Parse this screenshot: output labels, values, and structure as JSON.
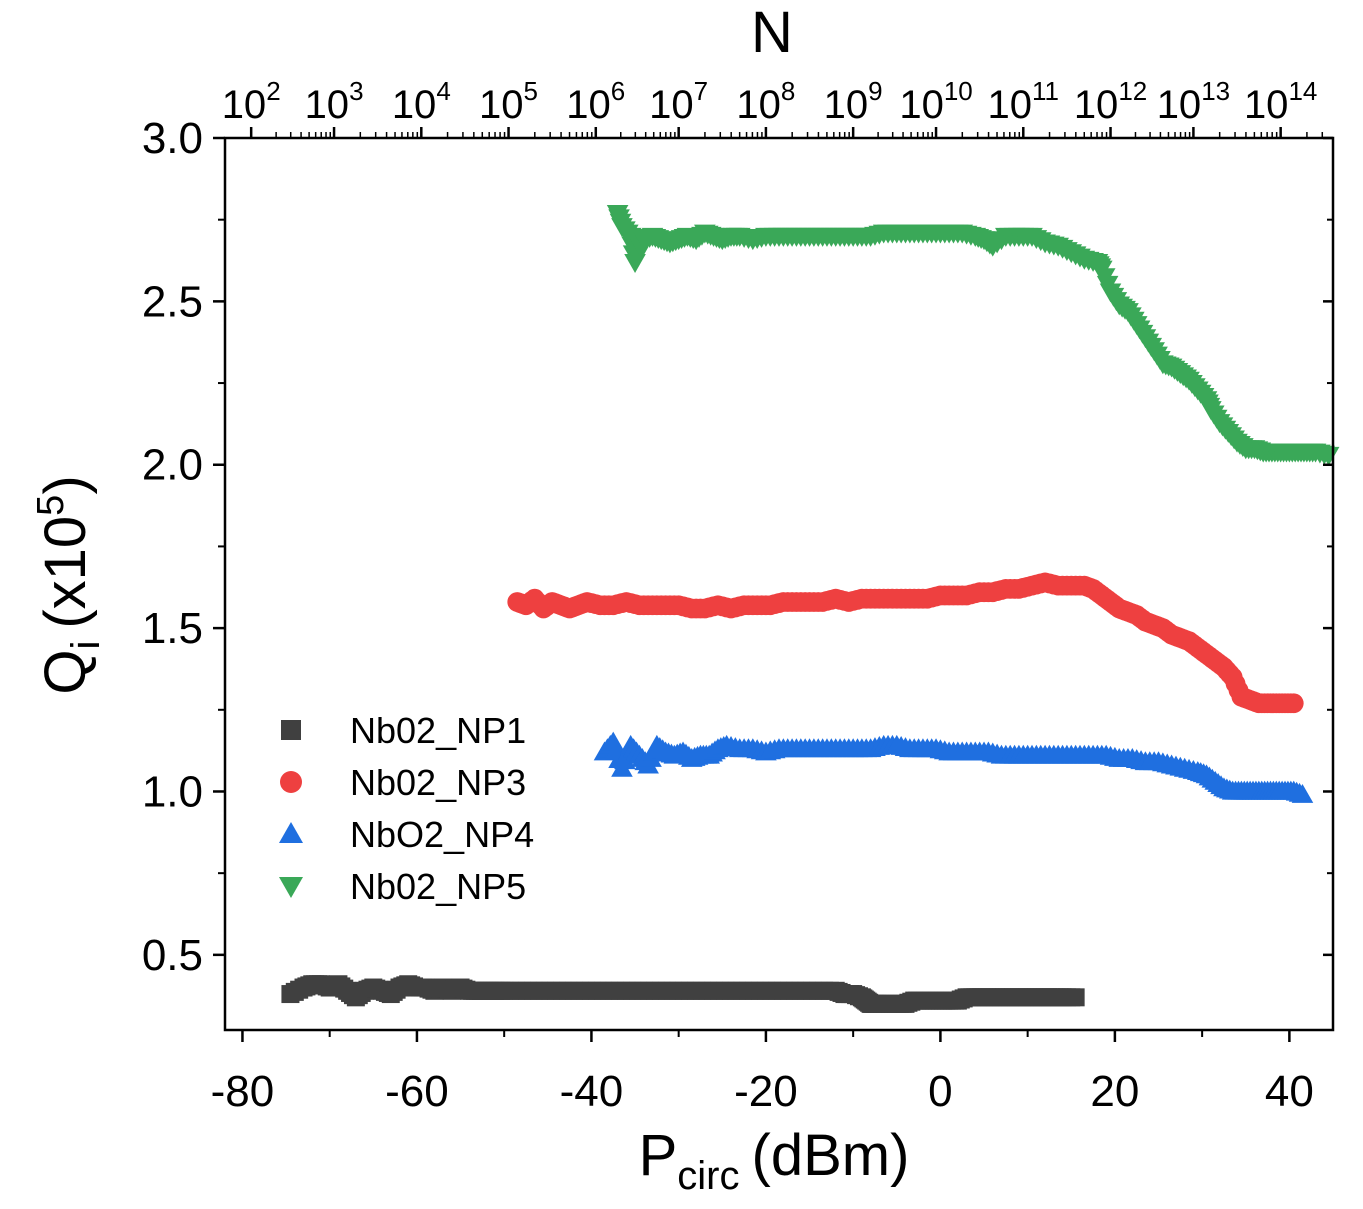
{
  "chart_data": {
    "type": "scatter",
    "xlabel": {
      "main": "P",
      "sub": "circ",
      "unit": "(dBm)"
    },
    "ylabel": {
      "main": "Q",
      "sub": "i",
      "unit_prefix": "(x10",
      "unit_exp": "5",
      "unit_suffix": ")"
    },
    "top_xlabel": "N",
    "xlim": [
      -82,
      45
    ],
    "ylim": [
      0.27,
      3.0
    ],
    "xticks": [
      -80,
      -60,
      -40,
      -20,
      0,
      20,
      40
    ],
    "xtick_labels": [
      "-80",
      "-60",
      "-40",
      "-20",
      "0",
      "20",
      "40"
    ],
    "yticks": [
      0.5,
      1.0,
      1.5,
      2.0,
      2.5,
      3.0
    ],
    "ytick_labels": [
      "0.5",
      "1.0",
      "1.5",
      "2.0",
      "2.5",
      "3.0"
    ],
    "top_ticks": [
      {
        "base": "10",
        "exp": "2",
        "x": -79
      },
      {
        "base": "10",
        "exp": "3",
        "x": -69.5
      },
      {
        "base": "10",
        "exp": "4",
        "x": -59.5
      },
      {
        "base": "10",
        "exp": "5",
        "x": -49.5
      },
      {
        "base": "10",
        "exp": "6",
        "x": -39.5
      },
      {
        "base": "10",
        "exp": "7",
        "x": -30
      },
      {
        "base": "10",
        "exp": "8",
        "x": -20
      },
      {
        "base": "10",
        "exp": "9",
        "x": -10
      },
      {
        "base": "10",
        "exp": "10",
        "x": -0.5
      },
      {
        "base": "10",
        "exp": "11",
        "x": 9.5
      },
      {
        "base": "10",
        "exp": "12",
        "x": 19.5
      },
      {
        "base": "10",
        "exp": "13",
        "x": 29
      },
      {
        "base": "10",
        "exp": "14",
        "x": 39
      }
    ],
    "legend_position": "lower-left",
    "series": [
      {
        "name": "Nb02_NP1",
        "marker": "square",
        "color": "#404040",
        "x": [
          -74.5,
          -73,
          -72,
          -71,
          -70,
          -69,
          -68,
          -67,
          -66,
          -65,
          -64,
          -63,
          -62,
          -61,
          -60,
          -59,
          -58,
          -57,
          -56,
          -55,
          -54,
          -53,
          -52,
          -51,
          -50,
          -48,
          -46,
          -44,
          -42,
          -40,
          -38,
          -36,
          -34,
          -32,
          -30,
          -28,
          -26,
          -24,
          -22,
          -20,
          -18,
          -16,
          -14,
          -12,
          -11,
          -10,
          -9,
          -8.5,
          -8,
          -7.5,
          -7,
          -6,
          -5,
          -4,
          -3,
          -2,
          -1,
          0,
          1,
          2,
          3,
          4,
          5,
          6,
          7,
          8,
          9,
          10,
          11,
          12,
          13,
          14,
          15.5
        ],
        "y": [
          0.38,
          0.4,
          0.41,
          0.41,
          0.4,
          0.41,
          0.39,
          0.37,
          0.39,
          0.4,
          0.39,
          0.38,
          0.4,
          0.41,
          0.4,
          0.4,
          0.39,
          0.4,
          0.39,
          0.4,
          0.39,
          0.39,
          0.39,
          0.39,
          0.39,
          0.39,
          0.39,
          0.39,
          0.39,
          0.39,
          0.39,
          0.39,
          0.39,
          0.39,
          0.39,
          0.39,
          0.39,
          0.39,
          0.39,
          0.39,
          0.39,
          0.39,
          0.39,
          0.39,
          0.38,
          0.38,
          0.37,
          0.36,
          0.35,
          0.35,
          0.35,
          0.35,
          0.35,
          0.35,
          0.36,
          0.36,
          0.36,
          0.36,
          0.36,
          0.36,
          0.37,
          0.37,
          0.37,
          0.37,
          0.37,
          0.37,
          0.37,
          0.37,
          0.37,
          0.37,
          0.37,
          0.37,
          0.37
        ]
      },
      {
        "name": "Nb02_NP3",
        "marker": "circle",
        "color": "#ee4040",
        "x": [
          -48.5,
          -47.5,
          -46.5,
          -45.5,
          -44.5,
          -43.5,
          -42.5,
          -41.5,
          -40.5,
          -39,
          -37.5,
          -36,
          -34.5,
          -33,
          -31.5,
          -30,
          -28.5,
          -27,
          -25.5,
          -24,
          -22.5,
          -21,
          -19.5,
          -18,
          -16.5,
          -15,
          -13.5,
          -12,
          -10.5,
          -9,
          -7.5,
          -6,
          -4.5,
          -3,
          -1.5,
          0,
          1.5,
          3,
          4.5,
          6,
          7.5,
          9,
          10.5,
          12,
          13.5,
          15,
          16.5,
          17.5,
          18.5,
          19.5,
          20.5,
          21.5,
          22.5,
          23.5,
          24.5,
          25.5,
          26.5,
          27.5,
          28.5,
          29.5,
          30.5,
          31.5,
          32.5,
          33.5,
          34.5,
          35.5,
          36.5,
          37.5,
          38.5,
          39.5,
          40.5
        ],
        "y": [
          1.58,
          1.57,
          1.59,
          1.56,
          1.58,
          1.57,
          1.56,
          1.57,
          1.58,
          1.57,
          1.57,
          1.58,
          1.57,
          1.57,
          1.57,
          1.57,
          1.56,
          1.56,
          1.57,
          1.56,
          1.57,
          1.57,
          1.57,
          1.58,
          1.58,
          1.58,
          1.58,
          1.59,
          1.58,
          1.59,
          1.59,
          1.59,
          1.59,
          1.59,
          1.59,
          1.6,
          1.6,
          1.6,
          1.61,
          1.61,
          1.62,
          1.62,
          1.63,
          1.64,
          1.63,
          1.63,
          1.63,
          1.62,
          1.6,
          1.58,
          1.56,
          1.55,
          1.54,
          1.52,
          1.51,
          1.5,
          1.48,
          1.47,
          1.46,
          1.44,
          1.42,
          1.4,
          1.38,
          1.35,
          1.29,
          1.28,
          1.27,
          1.27,
          1.27,
          1.27,
          1.27
        ]
      },
      {
        "name": "NbO2_NP4",
        "marker": "triangle-up",
        "color": "#1f6fe0",
        "x": [
          -38.5,
          -37.5,
          -36.5,
          -35.5,
          -34.5,
          -33.5,
          -32.5,
          -31.5,
          -30.5,
          -29.5,
          -28.5,
          -27.5,
          -26.5,
          -25.5,
          -24.5,
          -23,
          -21.5,
          -20,
          -18.5,
          -17,
          -15.5,
          -14,
          -12.5,
          -11,
          -9.5,
          -8,
          -6.5,
          -5,
          -3.5,
          -2,
          -0.5,
          1,
          2.5,
          4,
          5.5,
          7,
          8.5,
          10,
          11.5,
          13,
          14.5,
          16,
          17.5,
          19,
          20.5,
          22,
          23.5,
          25,
          26.5,
          28,
          29.5,
          30.5,
          31.5,
          32.5,
          33.5,
          34.5,
          35.5,
          36.5,
          37.5,
          38.5,
          39.5,
          40.5,
          41.5
        ],
        "y": [
          1.12,
          1.15,
          1.07,
          1.14,
          1.11,
          1.08,
          1.14,
          1.12,
          1.11,
          1.12,
          1.1,
          1.11,
          1.11,
          1.13,
          1.14,
          1.13,
          1.13,
          1.12,
          1.13,
          1.13,
          1.13,
          1.13,
          1.13,
          1.13,
          1.13,
          1.13,
          1.14,
          1.14,
          1.13,
          1.13,
          1.13,
          1.12,
          1.12,
          1.12,
          1.12,
          1.11,
          1.11,
          1.11,
          1.11,
          1.11,
          1.11,
          1.11,
          1.11,
          1.11,
          1.1,
          1.1,
          1.09,
          1.09,
          1.08,
          1.07,
          1.06,
          1.05,
          1.03,
          1.01,
          1.0,
          1.0,
          1.0,
          1.0,
          1.0,
          1.0,
          1.0,
          1.0,
          0.99
        ]
      },
      {
        "name": "Nb02_NP5",
        "marker": "triangle-down",
        "color": "#3aa858",
        "x": [
          -37,
          -36.5,
          -35.5,
          -35,
          -34,
          -33,
          -32,
          -31,
          -30,
          -29,
          -28,
          -27,
          -26,
          -25,
          -24,
          -23,
          -21.5,
          -20,
          -18.5,
          -17,
          -15.5,
          -14,
          -12.5,
          -11,
          -9.5,
          -8,
          -6.5,
          -5,
          -3.5,
          -2,
          -0.5,
          1,
          2.5,
          4,
          5,
          6,
          7.5,
          9,
          10.5,
          12,
          13.5,
          15,
          16.5,
          18,
          18.5,
          19.5,
          20.5,
          21.5,
          22.5,
          23.5,
          24.5,
          25.5,
          26.5,
          27.5,
          28.5,
          29.5,
          30.5,
          31,
          32,
          33,
          34,
          35,
          36,
          37,
          38,
          39,
          40,
          41,
          42,
          43,
          44.5
        ],
        "y": [
          2.77,
          2.73,
          2.7,
          2.62,
          2.69,
          2.7,
          2.69,
          2.68,
          2.69,
          2.7,
          2.69,
          2.71,
          2.7,
          2.69,
          2.7,
          2.7,
          2.69,
          2.7,
          2.7,
          2.7,
          2.7,
          2.7,
          2.7,
          2.7,
          2.7,
          2.7,
          2.71,
          2.71,
          2.71,
          2.71,
          2.71,
          2.71,
          2.71,
          2.7,
          2.69,
          2.67,
          2.7,
          2.7,
          2.7,
          2.68,
          2.67,
          2.65,
          2.63,
          2.62,
          2.6,
          2.53,
          2.49,
          2.47,
          2.43,
          2.39,
          2.35,
          2.31,
          2.3,
          2.28,
          2.26,
          2.23,
          2.2,
          2.17,
          2.13,
          2.1,
          2.07,
          2.05,
          2.05,
          2.04,
          2.04,
          2.04,
          2.04,
          2.04,
          2.04,
          2.04,
          2.03
        ]
      }
    ]
  }
}
